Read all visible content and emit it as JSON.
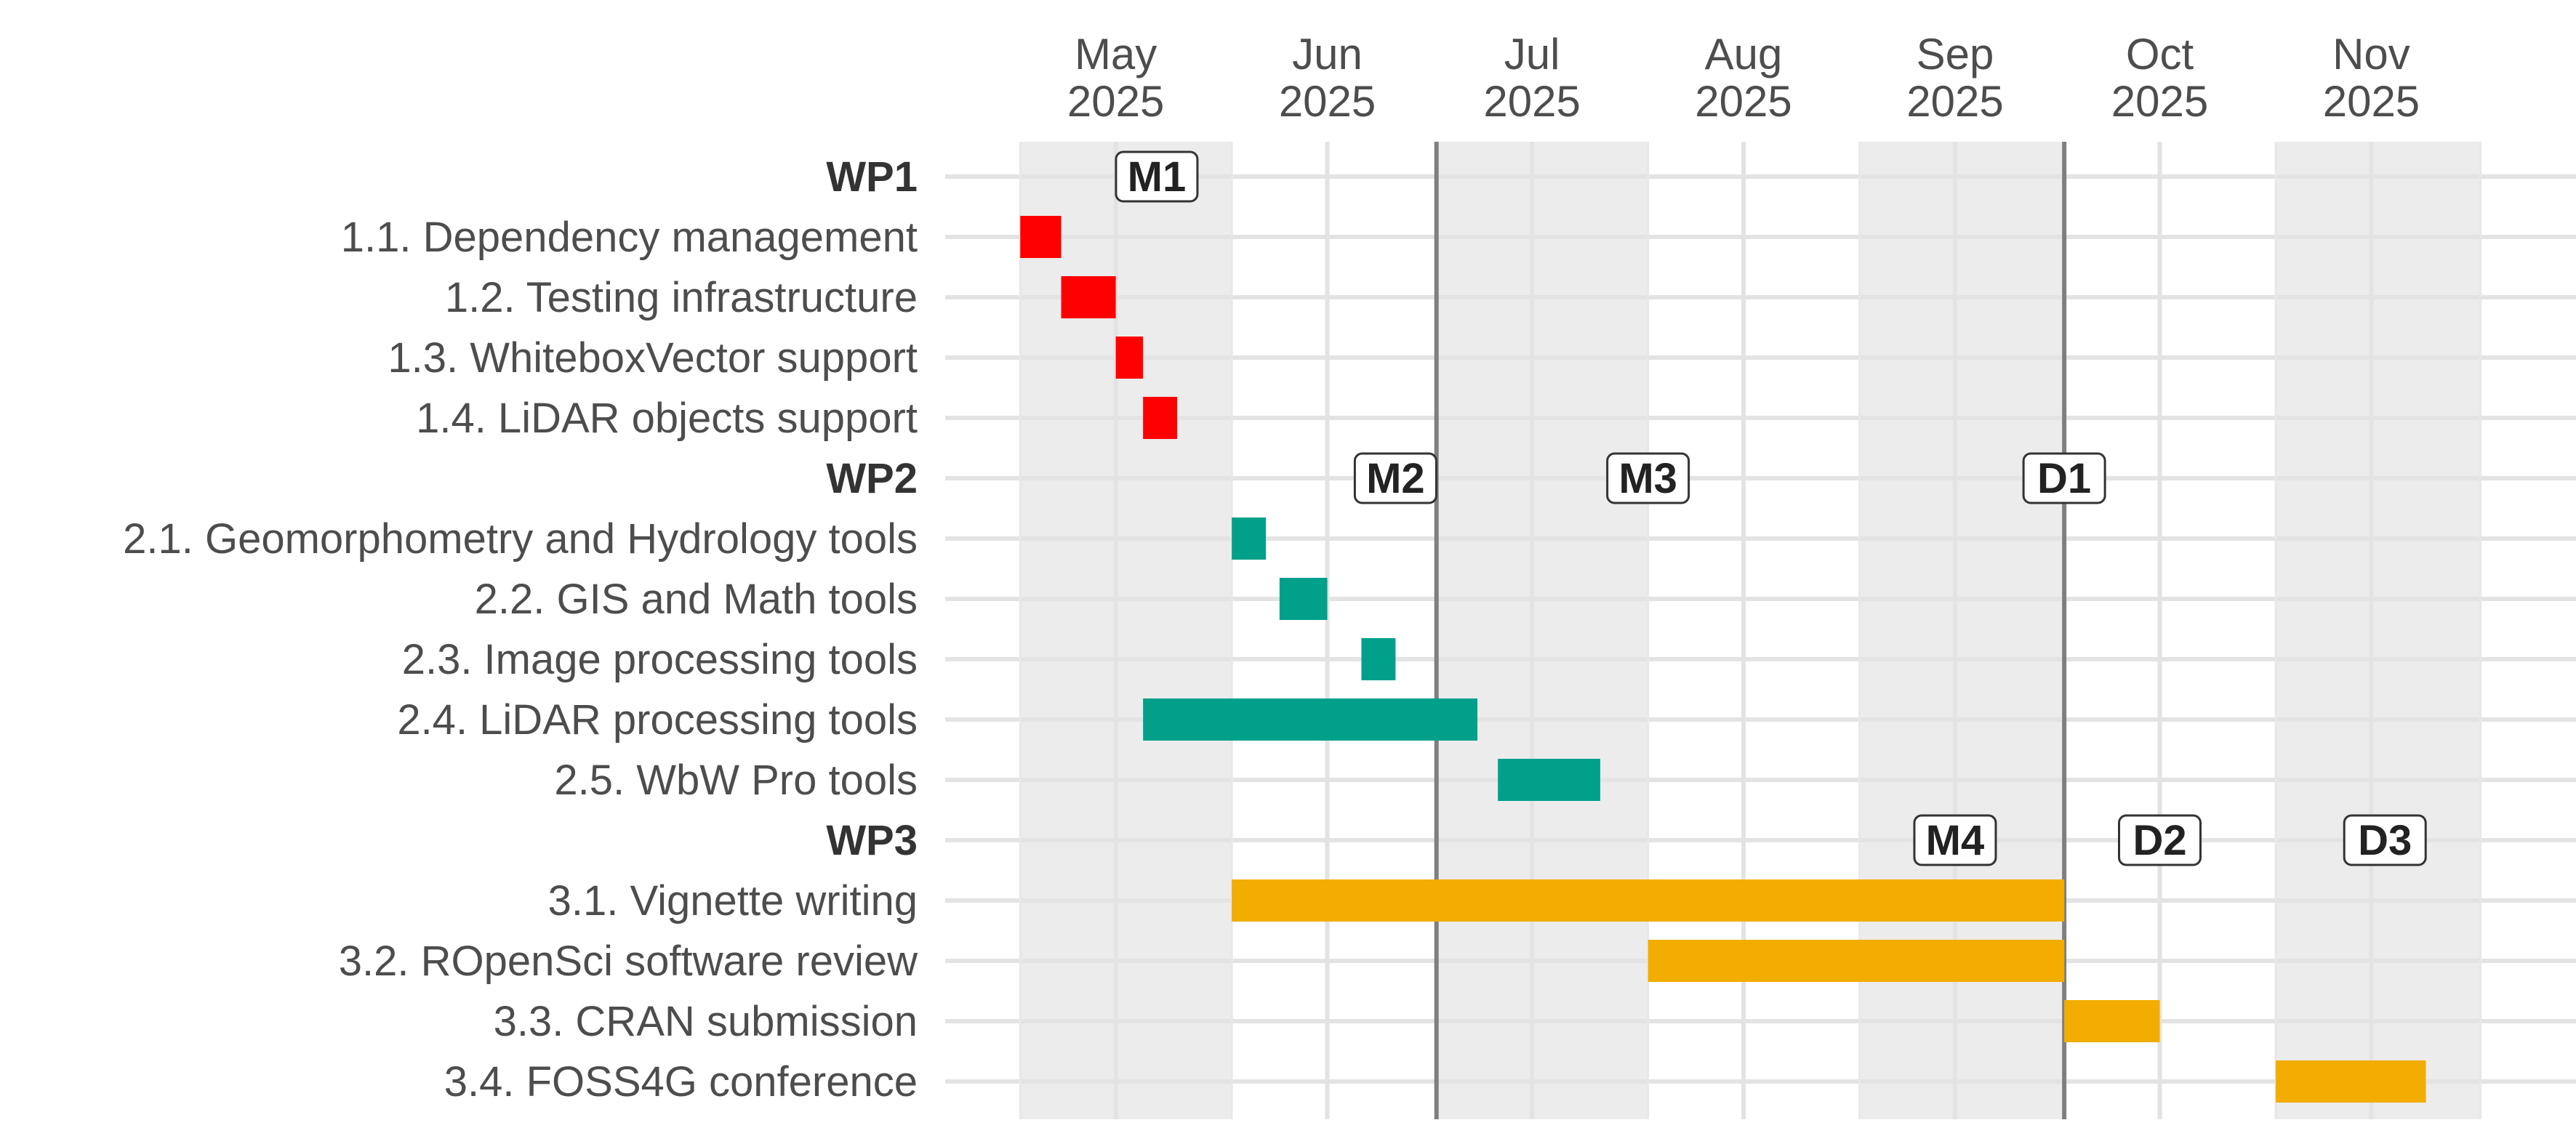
{
  "chart_data": {
    "type": "gantt",
    "x_axis": {
      "ticks": [
        {
          "month": "May",
          "year": "2025",
          "date": "2025-05-15"
        },
        {
          "month": "Jun",
          "year": "2025",
          "date": "2025-06-15"
        },
        {
          "month": "Jul",
          "year": "2025",
          "date": "2025-07-15"
        },
        {
          "month": "Aug",
          "year": "2025",
          "date": "2025-08-15"
        },
        {
          "month": "Sep",
          "year": "2025",
          "date": "2025-09-15"
        },
        {
          "month": "Oct",
          "year": "2025",
          "date": "2025-10-15"
        },
        {
          "month": "Nov",
          "year": "2025",
          "date": "2025-11-15"
        }
      ],
      "range": [
        "2025-04-20",
        "2025-12-15"
      ],
      "shaded_months": [
        {
          "start": "2025-05-01",
          "end": "2025-06-01"
        },
        {
          "start": "2025-07-01",
          "end": "2025-08-01"
        },
        {
          "start": "2025-09-01",
          "end": "2025-10-01"
        },
        {
          "start": "2025-11-01",
          "end": "2025-12-01"
        }
      ]
    },
    "reference_lines": [
      "2025-07-01",
      "2025-10-01"
    ],
    "rows": [
      {
        "label": "WP1",
        "is_header": true
      },
      {
        "label": "1.1. Dependency management",
        "start": "2025-05-01",
        "end": "2025-05-07",
        "color": "#ff0000"
      },
      {
        "label": "1.2. Testing infrastructure",
        "start": "2025-05-07",
        "end": "2025-05-15",
        "color": "#ff0000"
      },
      {
        "label": "1.3. WhiteboxVector support",
        "start": "2025-05-15",
        "end": "2025-05-19",
        "color": "#ff0000"
      },
      {
        "label": "1.4. LiDAR objects support",
        "start": "2025-05-19",
        "end": "2025-05-24",
        "color": "#ff0000"
      },
      {
        "label": "WP2",
        "is_header": true
      },
      {
        "label": "2.1. Geomorphometry and Hydrology tools",
        "start": "2025-06-01",
        "end": "2025-06-06",
        "color": "#00a08a"
      },
      {
        "label": "2.2. GIS and Math tools",
        "start": "2025-06-08",
        "end": "2025-06-15",
        "color": "#00a08a"
      },
      {
        "label": "2.3. Image processing tools",
        "start": "2025-06-20",
        "end": "2025-06-25",
        "color": "#00a08a"
      },
      {
        "label": "2.4. LiDAR processing tools",
        "start": "2025-05-19",
        "end": "2025-07-07",
        "color": "#00a08a"
      },
      {
        "label": "2.5. WbW Pro tools",
        "start": "2025-07-10",
        "end": "2025-07-25",
        "color": "#00a08a"
      },
      {
        "label": "WP3",
        "is_header": true
      },
      {
        "label": "3.1. Vignette writing",
        "start": "2025-06-01",
        "end": "2025-10-01",
        "color": "#f2ad00"
      },
      {
        "label": "3.2. ROpenSci software review",
        "start": "2025-08-01",
        "end": "2025-10-01",
        "color": "#f2ad00"
      },
      {
        "label": "3.3. CRAN submission",
        "start": "2025-10-01",
        "end": "2025-10-15",
        "color": "#f2ad00"
      },
      {
        "label": "3.4. FOSS4G conference",
        "start": "2025-11-01",
        "end": "2025-11-23",
        "color": "#f2ad00"
      }
    ],
    "markers": [
      {
        "label": "M1",
        "date": "2025-05-21",
        "row": 0
      },
      {
        "label": "M2",
        "date": "2025-06-25",
        "row": 5
      },
      {
        "label": "M3",
        "date": "2025-08-01",
        "row": 5
      },
      {
        "label": "D1",
        "date": "2025-10-01",
        "row": 5
      },
      {
        "label": "M4",
        "date": "2025-09-15",
        "row": 11
      },
      {
        "label": "D2",
        "date": "2025-10-15",
        "row": 11
      },
      {
        "label": "D3",
        "date": "2025-11-17",
        "row": 11
      }
    ]
  }
}
